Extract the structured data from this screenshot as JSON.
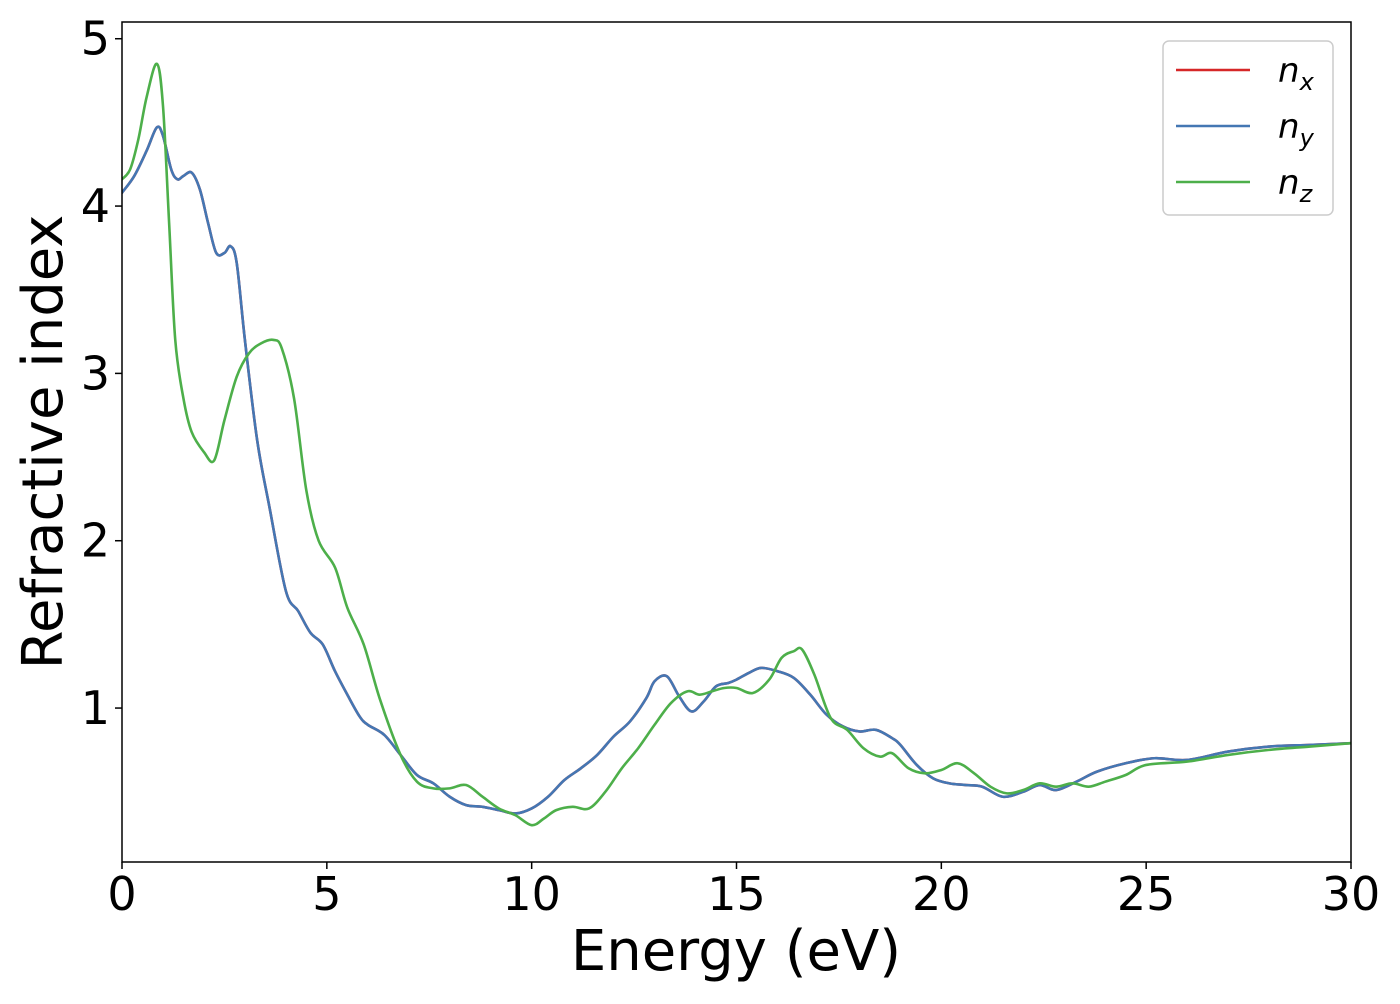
{
  "chart_data": {
    "type": "line",
    "xlabel": "Energy (eV)",
    "ylabel": "Refractive index",
    "xlim": [
      0,
      30
    ],
    "ylim": [
      0.08,
      5.1
    ],
    "x_ticks": [
      0,
      5,
      10,
      15,
      20,
      25,
      30
    ],
    "y_ticks": [
      1,
      2,
      3,
      4,
      5
    ],
    "grid": false,
    "legend_position": "top-right",
    "series": [
      {
        "name": "n_x",
        "base": "n",
        "subscript": "x",
        "color": "#d62728",
        "x": [
          0,
          0.3,
          0.6,
          0.85,
          1.0,
          1.2,
          1.35,
          1.5,
          1.7,
          1.9,
          2.1,
          2.3,
          2.5,
          2.65,
          2.8,
          3.0,
          3.3,
          3.6,
          4.0,
          4.3,
          4.6,
          4.9,
          5.2,
          5.5,
          5.8,
          6.0,
          6.4,
          6.8,
          7.2,
          7.6,
          8.0,
          8.4,
          8.8,
          9.2,
          9.6,
          10.0,
          10.4,
          10.8,
          11.2,
          11.6,
          12.0,
          12.4,
          12.8,
          13.0,
          13.3,
          13.6,
          13.9,
          14.2,
          14.5,
          14.8,
          15.0,
          15.3,
          15.6,
          16.0,
          16.4,
          16.8,
          17.2,
          17.6,
          18.0,
          18.4,
          18.8,
          19.0,
          19.4,
          19.8,
          20.2,
          20.6,
          21.0,
          21.5,
          22.0,
          22.4,
          22.8,
          23.3,
          23.8,
          24.5,
          25.2,
          26.0,
          27.0,
          28.0,
          29.0,
          30.0
        ],
        "y": [
          4.08,
          4.18,
          4.33,
          4.47,
          4.42,
          4.22,
          4.16,
          4.18,
          4.2,
          4.1,
          3.9,
          3.72,
          3.72,
          3.76,
          3.66,
          3.2,
          2.6,
          2.2,
          1.7,
          1.58,
          1.45,
          1.38,
          1.22,
          1.08,
          0.95,
          0.9,
          0.84,
          0.72,
          0.6,
          0.55,
          0.47,
          0.42,
          0.41,
          0.39,
          0.37,
          0.4,
          0.47,
          0.57,
          0.64,
          0.72,
          0.83,
          0.92,
          1.06,
          1.16,
          1.19,
          1.07,
          0.98,
          1.04,
          1.13,
          1.15,
          1.17,
          1.21,
          1.24,
          1.22,
          1.18,
          1.08,
          0.96,
          0.89,
          0.86,
          0.87,
          0.82,
          0.78,
          0.66,
          0.58,
          0.55,
          0.54,
          0.53,
          0.47,
          0.5,
          0.54,
          0.51,
          0.56,
          0.62,
          0.67,
          0.7,
          0.69,
          0.74,
          0.77,
          0.78,
          0.79
        ]
      },
      {
        "name": "n_y",
        "base": "n",
        "subscript": "y",
        "color": "#4477b3",
        "x": [
          0,
          0.3,
          0.6,
          0.85,
          1.0,
          1.2,
          1.35,
          1.5,
          1.7,
          1.9,
          2.1,
          2.3,
          2.5,
          2.65,
          2.8,
          3.0,
          3.3,
          3.6,
          4.0,
          4.3,
          4.6,
          4.9,
          5.2,
          5.5,
          5.8,
          6.0,
          6.4,
          6.8,
          7.2,
          7.6,
          8.0,
          8.4,
          8.8,
          9.2,
          9.6,
          10.0,
          10.4,
          10.8,
          11.2,
          11.6,
          12.0,
          12.4,
          12.8,
          13.0,
          13.3,
          13.6,
          13.9,
          14.2,
          14.5,
          14.8,
          15.0,
          15.3,
          15.6,
          16.0,
          16.4,
          16.8,
          17.2,
          17.6,
          18.0,
          18.4,
          18.8,
          19.0,
          19.4,
          19.8,
          20.2,
          20.6,
          21.0,
          21.5,
          22.0,
          22.4,
          22.8,
          23.3,
          23.8,
          24.5,
          25.2,
          26.0,
          27.0,
          28.0,
          29.0,
          30.0
        ],
        "y": [
          4.08,
          4.18,
          4.33,
          4.47,
          4.42,
          4.22,
          4.16,
          4.18,
          4.2,
          4.1,
          3.9,
          3.72,
          3.72,
          3.76,
          3.66,
          3.2,
          2.6,
          2.2,
          1.7,
          1.58,
          1.45,
          1.38,
          1.22,
          1.08,
          0.95,
          0.9,
          0.84,
          0.72,
          0.6,
          0.55,
          0.47,
          0.42,
          0.41,
          0.39,
          0.37,
          0.4,
          0.47,
          0.57,
          0.64,
          0.72,
          0.83,
          0.92,
          1.06,
          1.16,
          1.19,
          1.07,
          0.98,
          1.04,
          1.13,
          1.15,
          1.17,
          1.21,
          1.24,
          1.22,
          1.18,
          1.08,
          0.96,
          0.89,
          0.86,
          0.87,
          0.82,
          0.78,
          0.66,
          0.58,
          0.55,
          0.54,
          0.53,
          0.47,
          0.5,
          0.54,
          0.51,
          0.56,
          0.62,
          0.67,
          0.7,
          0.69,
          0.74,
          0.77,
          0.78,
          0.79
        ]
      },
      {
        "name": "n_z",
        "base": "n",
        "subscript": "z",
        "color": "#4daf4a",
        "x": [
          0,
          0.2,
          0.4,
          0.6,
          0.85,
          1.0,
          1.15,
          1.3,
          1.5,
          1.7,
          2.0,
          2.25,
          2.5,
          2.8,
          3.1,
          3.4,
          3.7,
          3.9,
          4.2,
          4.5,
          4.8,
          5.2,
          5.5,
          5.9,
          6.3,
          6.8,
          7.2,
          7.6,
          8.0,
          8.4,
          8.8,
          9.2,
          9.6,
          10.0,
          10.3,
          10.6,
          11.0,
          11.4,
          11.8,
          12.2,
          12.6,
          13.0,
          13.4,
          13.8,
          14.1,
          14.4,
          14.7,
          15.0,
          15.4,
          15.8,
          16.1,
          16.4,
          16.6,
          16.9,
          17.3,
          17.7,
          18.1,
          18.5,
          18.8,
          19.2,
          19.6,
          20.0,
          20.4,
          20.8,
          21.2,
          21.6,
          22.0,
          22.4,
          22.8,
          23.2,
          23.6,
          24.0,
          24.5,
          25.0,
          26.0,
          27.0,
          28.0,
          29.0,
          30.0
        ],
        "y": [
          4.16,
          4.22,
          4.4,
          4.65,
          4.85,
          4.6,
          3.9,
          3.2,
          2.85,
          2.65,
          2.53,
          2.48,
          2.72,
          2.98,
          3.12,
          3.18,
          3.2,
          3.15,
          2.85,
          2.3,
          2.0,
          1.84,
          1.6,
          1.38,
          1.05,
          0.72,
          0.56,
          0.52,
          0.52,
          0.54,
          0.47,
          0.4,
          0.36,
          0.3,
          0.34,
          0.39,
          0.41,
          0.4,
          0.5,
          0.64,
          0.76,
          0.9,
          1.03,
          1.1,
          1.08,
          1.1,
          1.12,
          1.12,
          1.09,
          1.17,
          1.3,
          1.34,
          1.35,
          1.2,
          0.94,
          0.87,
          0.76,
          0.71,
          0.73,
          0.64,
          0.61,
          0.63,
          0.67,
          0.61,
          0.53,
          0.49,
          0.51,
          0.55,
          0.53,
          0.55,
          0.53,
          0.56,
          0.6,
          0.66,
          0.68,
          0.72,
          0.75,
          0.77,
          0.79
        ]
      }
    ]
  }
}
